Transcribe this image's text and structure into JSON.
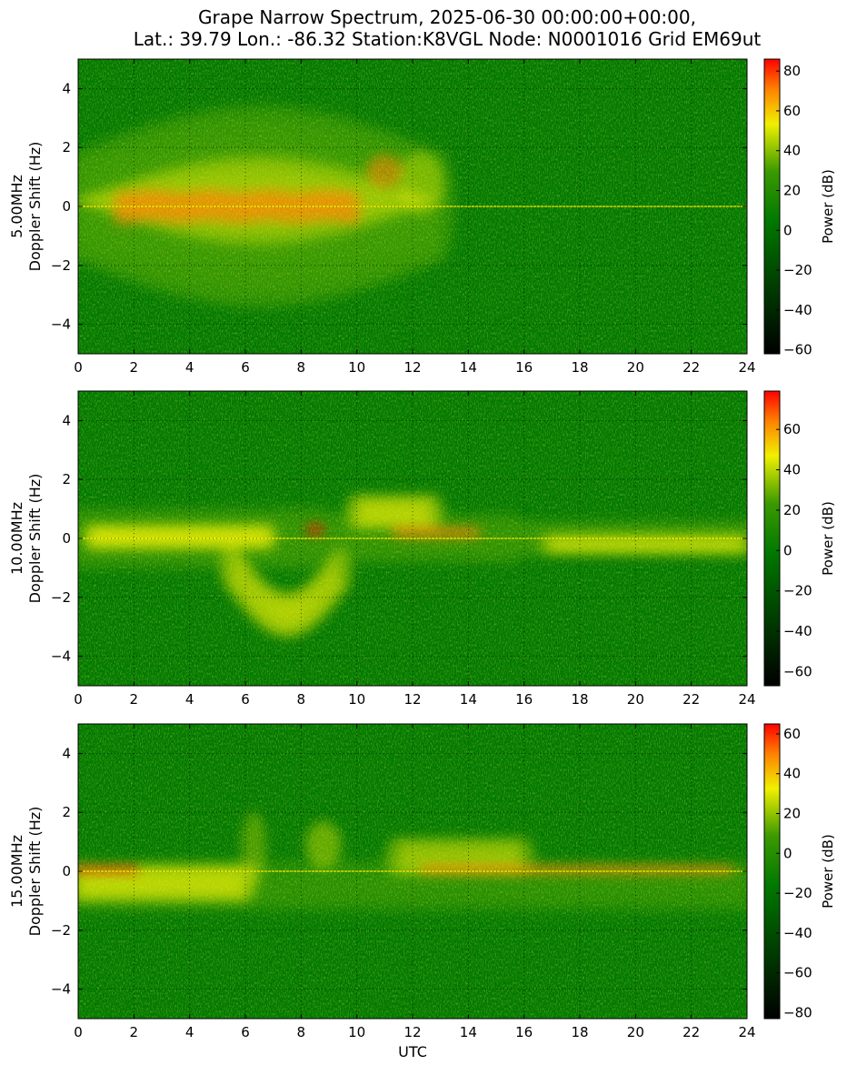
{
  "figure": {
    "title_line1": "Grape Narrow Spectrum, 2025-06-30 00:00:00+00:00,",
    "title_line2": "Lat.: 39.79 Lon.: -86.32 Station:K8VGL Node: N0001016 Grid EM69ut"
  },
  "colors": {
    "background_green": "#007800",
    "mid_green": "#3c9a00",
    "yellow": "#f0f000",
    "orange": "#ff8000",
    "red": "#ff0000",
    "black": "#000000",
    "grid": "#000000"
  },
  "chart_data": [
    {
      "type": "heatmap",
      "frequency": "5.00MHz",
      "ylabel": "5.00MHz\nDoppler Shift (Hz)",
      "xlabel": "",
      "x_ticks": [
        0,
        2,
        4,
        6,
        8,
        10,
        12,
        14,
        16,
        18,
        20,
        22,
        24
      ],
      "y_ticks": [
        4,
        2,
        0,
        -2,
        -4
      ],
      "xlim": [
        0,
        24
      ],
      "ylim": [
        -5,
        5
      ],
      "grid": true,
      "colorbar": {
        "label": "Power (dB)",
        "ticks": [
          80,
          60,
          40,
          20,
          0,
          -20,
          -40,
          -60
        ],
        "range": [
          -62,
          86
        ]
      },
      "features": {
        "carrier_line_hz": 0,
        "broad_spread_hours": [
          0,
          13
        ],
        "broad_spread_hz": 3.5,
        "strong_core_hours": [
          1.5,
          10
        ],
        "peak_event_hour": 11,
        "peak_event_hz": 1.2
      }
    },
    {
      "type": "heatmap",
      "frequency": "10.00MHz",
      "ylabel": "10.00MHz\nDoppler Shift (Hz)",
      "xlabel": "",
      "x_ticks": [
        0,
        2,
        4,
        6,
        8,
        10,
        12,
        14,
        16,
        18,
        20,
        22,
        24
      ],
      "y_ticks": [
        4,
        2,
        0,
        -2,
        -4
      ],
      "xlim": [
        0,
        24
      ],
      "ylim": [
        -5,
        5
      ],
      "grid": true,
      "colorbar": {
        "label": "Power (dB)",
        "ticks": [
          60,
          40,
          20,
          0,
          -20,
          -40,
          -60
        ],
        "range": [
          -67,
          79
        ]
      },
      "features": {
        "carrier_line_hz": 0,
        "strong_core_hours": [
          0.5,
          7
        ],
        "dip_event_hour": 8,
        "dip_event_hz": -2.8,
        "secondary_core_hours": [
          11.5,
          14.5
        ],
        "evening_spread_hours": [
          17,
          24
        ]
      }
    },
    {
      "type": "heatmap",
      "frequency": "15.00MHz",
      "ylabel": "15.00MHz\nDoppler Shift (Hz)",
      "xlabel": "UTC",
      "x_ticks": [
        0,
        2,
        4,
        6,
        8,
        10,
        12,
        14,
        16,
        18,
        20,
        22,
        24
      ],
      "y_ticks": [
        4,
        2,
        0,
        -2,
        -4
      ],
      "xlim": [
        0,
        24
      ],
      "ylim": [
        -5,
        5
      ],
      "grid": true,
      "colorbar": {
        "label": "Power (dB)",
        "ticks": [
          60,
          40,
          20,
          0,
          -20,
          -40,
          -60,
          -80
        ],
        "range": [
          -83,
          65
        ]
      },
      "features": {
        "carrier_line_hz": 0,
        "early_core_hours": [
          0,
          2
        ],
        "hump_event_hour": 8.8,
        "hump_event_hz": 1.5,
        "strong_core_hours": [
          12.5,
          23.5
        ]
      }
    }
  ]
}
